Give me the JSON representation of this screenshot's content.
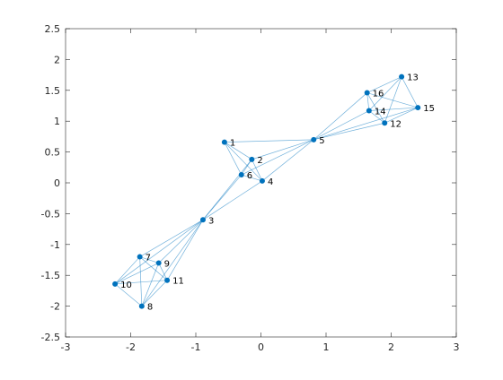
{
  "chart_data": {
    "type": "graph",
    "xlim": [
      -3,
      3
    ],
    "ylim": [
      -2.5,
      2.5
    ],
    "xticks": [
      -3,
      -2,
      -1,
      0,
      1,
      2,
      3
    ],
    "yticks": [
      -2.5,
      -2,
      -1.5,
      -1,
      -0.5,
      0,
      0.5,
      1,
      1.5,
      2,
      2.5
    ],
    "color": "#0072bd",
    "nodes": [
      {
        "label": "1",
        "x": -0.56,
        "y": 0.66
      },
      {
        "label": "2",
        "x": -0.14,
        "y": 0.38
      },
      {
        "label": "3",
        "x": -0.89,
        "y": -0.6
      },
      {
        "label": "4",
        "x": 0.02,
        "y": 0.03
      },
      {
        "label": "5",
        "x": 0.81,
        "y": 0.7
      },
      {
        "label": "6",
        "x": -0.3,
        "y": 0.13
      },
      {
        "label": "7",
        "x": -1.86,
        "y": -1.2
      },
      {
        "label": "8",
        "x": -1.83,
        "y": -2.0
      },
      {
        "label": "9",
        "x": -1.57,
        "y": -1.3
      },
      {
        "label": "10",
        "x": -2.24,
        "y": -1.64
      },
      {
        "label": "11",
        "x": -1.44,
        "y": -1.58
      },
      {
        "label": "12",
        "x": 1.9,
        "y": 0.97
      },
      {
        "label": "13",
        "x": 2.16,
        "y": 1.72
      },
      {
        "label": "14",
        "x": 1.66,
        "y": 1.17
      },
      {
        "label": "15",
        "x": 2.41,
        "y": 1.22
      },
      {
        "label": "16",
        "x": 1.63,
        "y": 1.46
      }
    ],
    "edges": [
      [
        "1",
        "2"
      ],
      [
        "1",
        "4"
      ],
      [
        "1",
        "6"
      ],
      [
        "1",
        "5"
      ],
      [
        "2",
        "4"
      ],
      [
        "2",
        "6"
      ],
      [
        "2",
        "5"
      ],
      [
        "2",
        "3"
      ],
      [
        "4",
        "6"
      ],
      [
        "4",
        "5"
      ],
      [
        "4",
        "3"
      ],
      [
        "6",
        "3"
      ],
      [
        "6",
        "5"
      ],
      [
        "3",
        "7"
      ],
      [
        "3",
        "9"
      ],
      [
        "3",
        "11"
      ],
      [
        "3",
        "10"
      ],
      [
        "3",
        "8"
      ],
      [
        "7",
        "8"
      ],
      [
        "7",
        "9"
      ],
      [
        "7",
        "10"
      ],
      [
        "7",
        "11"
      ],
      [
        "8",
        "9"
      ],
      [
        "8",
        "10"
      ],
      [
        "8",
        "11"
      ],
      [
        "9",
        "10"
      ],
      [
        "9",
        "11"
      ],
      [
        "10",
        "11"
      ],
      [
        "5",
        "16"
      ],
      [
        "5",
        "14"
      ],
      [
        "5",
        "12"
      ],
      [
        "5",
        "15"
      ],
      [
        "12",
        "13"
      ],
      [
        "12",
        "14"
      ],
      [
        "12",
        "15"
      ],
      [
        "12",
        "16"
      ],
      [
        "13",
        "14"
      ],
      [
        "13",
        "15"
      ],
      [
        "13",
        "16"
      ],
      [
        "14",
        "15"
      ],
      [
        "14",
        "16"
      ],
      [
        "15",
        "16"
      ]
    ]
  }
}
